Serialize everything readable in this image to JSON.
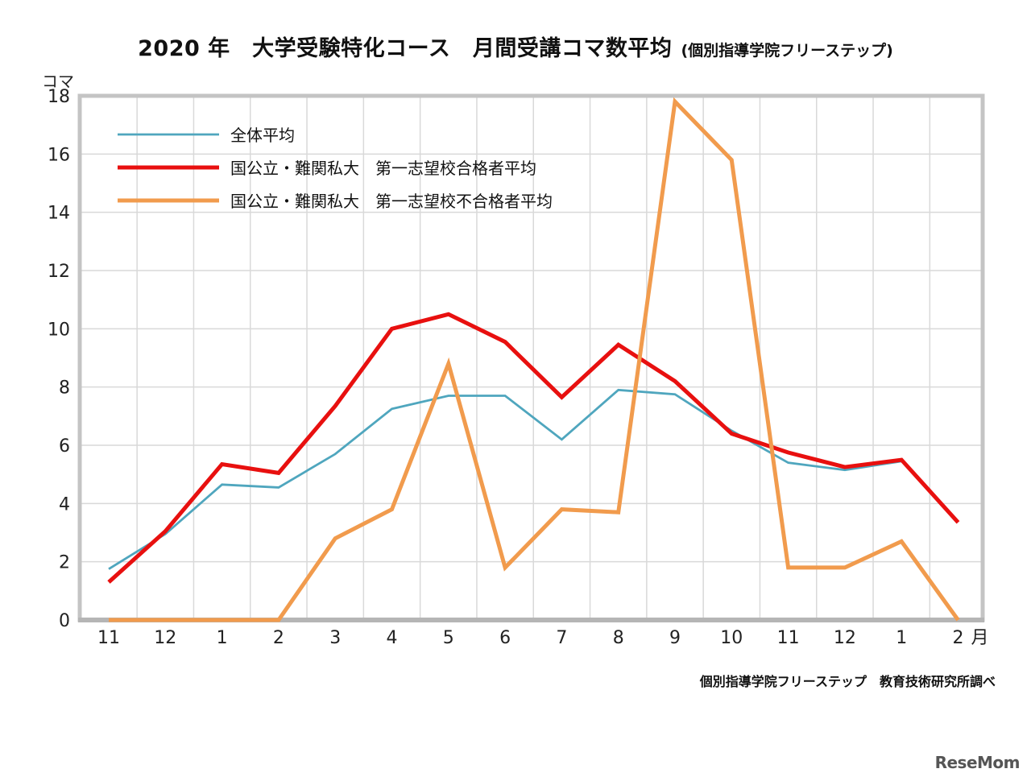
{
  "chart_data": {
    "type": "line",
    "title": "2020 年　大学受験特化コース　月間受講コマ数平均",
    "subtitle": "(個別指導学院フリーステップ)",
    "ylabel": "コマ",
    "xlabel": "",
    "x_unit": "月",
    "categories": [
      "11",
      "12",
      "1",
      "2",
      "3",
      "4",
      "5",
      "6",
      "7",
      "8",
      "9",
      "10",
      "11",
      "12",
      "1",
      "2"
    ],
    "ylim": [
      0,
      18
    ],
    "yticks": [
      0,
      2,
      4,
      6,
      8,
      10,
      12,
      14,
      16,
      18
    ],
    "grid": true,
    "legend_position": "top-left",
    "series": [
      {
        "name": "全体平均",
        "color": "#4fa6be",
        "values": [
          1.75,
          2.95,
          4.65,
          4.55,
          5.7,
          7.25,
          7.7,
          7.7,
          6.2,
          7.9,
          7.75,
          6.5,
          5.4,
          5.15,
          5.45,
          null
        ]
      },
      {
        "name": "国公立・難関私大　第一志望校合格者平均",
        "color": "#e8100f",
        "values": [
          1.3,
          3.05,
          5.35,
          5.05,
          7.35,
          10.0,
          10.5,
          9.55,
          7.65,
          9.45,
          8.2,
          6.4,
          5.75,
          5.25,
          5.5,
          3.35
        ]
      },
      {
        "name": "国公立・難関私大　第一志望校不合格者平均",
        "color": "#f19b4d",
        "values": [
          0,
          0,
          0,
          0,
          2.8,
          3.8,
          8.8,
          1.8,
          3.8,
          3.7,
          17.8,
          15.8,
          1.8,
          1.8,
          2.7,
          0
        ]
      }
    ]
  },
  "source_note": "個別指導学院フリーステップ　教育技術研究所調べ",
  "watermark": "ReseMom"
}
